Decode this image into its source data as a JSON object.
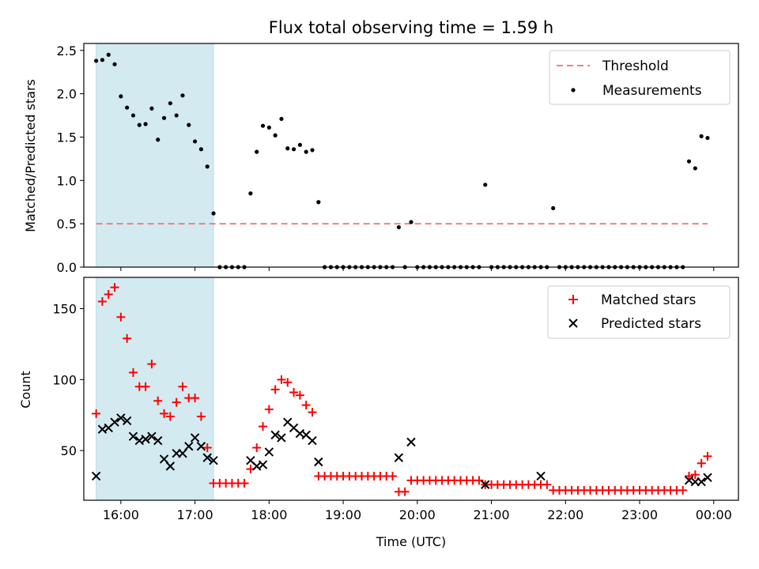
{
  "chart_data": [
    {
      "type": "scatter",
      "title": "Flux total observing time = 1.59 h",
      "xlabel": "",
      "ylabel": "Matched/Predicted stars",
      "ylim": [
        0,
        2.58
      ],
      "xlim": [
        "15:30",
        "00:20"
      ],
      "yticks": [
        "0.0",
        "0.5",
        "1.0",
        "1.5",
        "2.0",
        "2.5"
      ],
      "legend_position": "top-right",
      "shaded_interval": {
        "start": "15:40",
        "end": "17:15",
        "color": "#d3eaf1"
      },
      "threshold": {
        "name": "Threshold",
        "value": 0.5,
        "x_start": "15:40",
        "x_end": "23:55",
        "color": "#f08080",
        "style": "dashed"
      },
      "series": [
        {
          "name": "Measurements",
          "color": "#000000",
          "x": [
            "15:40",
            "15:45",
            "15:50",
            "15:55",
            "16:00",
            "16:05",
            "16:10",
            "16:15",
            "16:20",
            "16:25",
            "16:30",
            "16:35",
            "16:40",
            "16:45",
            "16:50",
            "16:55",
            "17:00",
            "17:05",
            "17:10",
            "17:15",
            "17:20",
            "17:25",
            "17:30",
            "17:35",
            "17:40",
            "17:45",
            "17:50",
            "17:55",
            "18:00",
            "18:05",
            "18:10",
            "18:15",
            "18:20",
            "18:25",
            "18:30",
            "18:35",
            "18:40",
            "18:45",
            "18:50",
            "18:55",
            "19:00",
            "19:05",
            "19:10",
            "19:15",
            "19:20",
            "19:25",
            "19:30",
            "19:35",
            "19:40",
            "19:45",
            "19:50",
            "19:55",
            "20:00",
            "20:05",
            "20:10",
            "20:15",
            "20:20",
            "20:25",
            "20:30",
            "20:35",
            "20:40",
            "20:45",
            "20:50",
            "20:55",
            "21:00",
            "21:05",
            "21:10",
            "21:15",
            "21:20",
            "21:25",
            "21:30",
            "21:35",
            "21:40",
            "21:45",
            "21:50",
            "21:55",
            "22:00",
            "22:05",
            "22:10",
            "22:15",
            "22:20",
            "22:25",
            "22:30",
            "22:35",
            "22:40",
            "22:45",
            "22:50",
            "22:55",
            "23:00",
            "23:05",
            "23:10",
            "23:15",
            "23:20",
            "23:25",
            "23:30",
            "23:35",
            "23:40",
            "23:45",
            "23:50",
            "23:55"
          ],
          "y": [
            2.38,
            2.39,
            2.45,
            2.34,
            1.97,
            1.84,
            1.75,
            1.64,
            1.65,
            1.83,
            1.47,
            1.72,
            1.89,
            1.75,
            1.98,
            1.64,
            1.45,
            1.36,
            1.16,
            0.62,
            0,
            0,
            0,
            0,
            0,
            0.85,
            1.33,
            1.63,
            1.61,
            1.52,
            1.71,
            1.37,
            1.36,
            1.41,
            1.33,
            1.35,
            0.75,
            0,
            0,
            0,
            0,
            0,
            0,
            0,
            0,
            0,
            0,
            0,
            0,
            0.46,
            0,
            0.52,
            0,
            0,
            0,
            0,
            0,
            0,
            0,
            0,
            0,
            0,
            0,
            0.95,
            0,
            0,
            0,
            0,
            0,
            0,
            0,
            0,
            0,
            0,
            0.68,
            0,
            0,
            0,
            0,
            0,
            0,
            0,
            0,
            0,
            0,
            0,
            0,
            0,
            0,
            0,
            0,
            0,
            0,
            0,
            0,
            0,
            1.22,
            1.14,
            1.51,
            1.49
          ]
        }
      ]
    },
    {
      "type": "scatter",
      "title": "",
      "xlabel": "Time (UTC)",
      "ylabel": "Count",
      "ylim": [
        15,
        172
      ],
      "xlim": [
        "15:30",
        "00:20"
      ],
      "yticks": [
        "50",
        "100",
        "150"
      ],
      "xticks": [
        "16:00",
        "17:00",
        "18:00",
        "19:00",
        "20:00",
        "21:00",
        "22:00",
        "23:00",
        "00:00"
      ],
      "legend_position": "top-right",
      "shaded_interval": {
        "start": "15:40",
        "end": "17:15",
        "color": "#d3eaf1"
      },
      "series": [
        {
          "name": "Matched stars",
          "marker": "plus",
          "color": "#ff0000",
          "x": [
            "15:40",
            "15:45",
            "15:50",
            "15:55",
            "16:00",
            "16:05",
            "16:10",
            "16:15",
            "16:20",
            "16:25",
            "16:30",
            "16:35",
            "16:40",
            "16:45",
            "16:50",
            "16:55",
            "17:00",
            "17:05",
            "17:10",
            "17:15",
            "17:20",
            "17:25",
            "17:30",
            "17:35",
            "17:40",
            "17:45",
            "17:50",
            "17:55",
            "18:00",
            "18:05",
            "18:10",
            "18:15",
            "18:20",
            "18:25",
            "18:30",
            "18:35",
            "18:40",
            "18:45",
            "18:50",
            "18:55",
            "19:00",
            "19:05",
            "19:10",
            "19:15",
            "19:20",
            "19:25",
            "19:30",
            "19:35",
            "19:40",
            "19:45",
            "19:50",
            "19:55",
            "20:00",
            "20:05",
            "20:10",
            "20:15",
            "20:20",
            "20:25",
            "20:30",
            "20:35",
            "20:40",
            "20:45",
            "20:50",
            "20:55",
            "21:00",
            "21:05",
            "21:10",
            "21:15",
            "21:20",
            "21:25",
            "21:30",
            "21:35",
            "21:40",
            "21:45",
            "21:50",
            "21:55",
            "22:00",
            "22:05",
            "22:10",
            "22:15",
            "22:20",
            "22:25",
            "22:30",
            "22:35",
            "22:40",
            "22:45",
            "22:50",
            "22:55",
            "23:00",
            "23:05",
            "23:10",
            "23:15",
            "23:20",
            "23:25",
            "23:30",
            "23:35",
            "23:40",
            "23:45",
            "23:50",
            "23:55"
          ],
          "y": [
            76,
            155,
            160,
            165,
            144,
            129,
            105,
            95,
            95,
            111,
            85,
            76,
            74,
            84,
            95,
            87,
            87,
            74,
            52,
            27,
            27,
            27,
            27,
            27,
            27,
            37,
            52,
            67,
            79,
            93,
            100,
            98,
            91,
            89,
            82,
            77,
            32,
            32,
            32,
            32,
            32,
            32,
            32,
            32,
            32,
            32,
            32,
            32,
            32,
            21,
            21,
            29,
            29,
            29,
            29,
            29,
            29,
            29,
            29,
            29,
            29,
            29,
            29,
            26,
            26,
            26,
            26,
            26,
            26,
            26,
            26,
            26,
            26,
            26,
            22,
            22,
            22,
            22,
            22,
            22,
            22,
            22,
            22,
            22,
            22,
            22,
            22,
            22,
            22,
            22,
            22,
            22,
            22,
            22,
            22,
            22,
            32,
            33,
            41,
            46
          ]
        },
        {
          "name": "Predicted stars",
          "marker": "x",
          "color": "#000000",
          "x": [
            "15:40",
            "15:45",
            "15:50",
            "15:55",
            "16:00",
            "16:05",
            "16:10",
            "16:15",
            "16:20",
            "16:25",
            "16:30",
            "16:35",
            "16:40",
            "16:45",
            "16:50",
            "16:55",
            "17:00",
            "17:05",
            "17:10",
            "17:15",
            "17:45",
            "17:50",
            "17:55",
            "18:00",
            "18:05",
            "18:10",
            "18:15",
            "18:20",
            "18:25",
            "18:30",
            "18:35",
            "18:40",
            "19:45",
            "19:55",
            "20:55",
            "21:40",
            "23:40",
            "23:45",
            "23:50",
            "23:55"
          ],
          "y": [
            32,
            65,
            66,
            70,
            73,
            71,
            60,
            57,
            58,
            60,
            57,
            44,
            39,
            48,
            48,
            53,
            59,
            53,
            45,
            43,
            43,
            39,
            40,
            49,
            61,
            59,
            70,
            66,
            62,
            61,
            57,
            42,
            45,
            56,
            26,
            32,
            29,
            28,
            28,
            31
          ]
        }
      ]
    }
  ]
}
